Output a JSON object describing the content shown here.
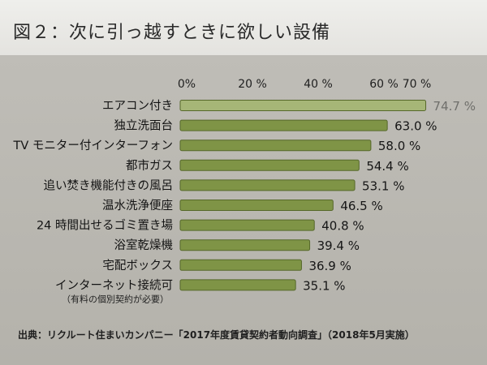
{
  "figure_title": "図２：次に引っ越すときに欲しい設備",
  "source_note": "出典：リクルート住まいカンパニー「2017年度賃貸契約者動向調査」（2018年5月実施）",
  "colors": {
    "bar_fill": "#7f9446",
    "bar_edge": "#56682a",
    "top_bar_fill": "#a6b677",
    "panel_bg": "#b9b7b1"
  },
  "chart_data": {
    "type": "bar",
    "orientation": "horizontal",
    "title": "",
    "xlabel": "",
    "ylabel": "",
    "xlim": [
      0,
      80
    ],
    "grid": false,
    "tick_values": [
      0,
      20,
      40,
      60,
      70
    ],
    "tick_labels": [
      "0%",
      "20 %",
      "40 %",
      "60 %",
      "70 %"
    ],
    "categories": [
      "エアコン付き",
      "独立洗面台",
      "TV モニター付インターフォン",
      "都市ガス",
      "追い焚き機能付きの風呂",
      "温水洗浄便座",
      "24 時間出せるゴミ置き場",
      "浴室乾燥機",
      "宅配ボックス",
      "インターネット接続可"
    ],
    "category_notes": [
      "",
      "",
      "",
      "",
      "",
      "",
      "",
      "",
      "",
      "（有料の個別契約が必要）"
    ],
    "values": [
      74.7,
      63.0,
      58.0,
      54.4,
      53.1,
      46.5,
      40.8,
      39.4,
      36.9,
      35.1
    ],
    "value_labels": [
      "74.7 %",
      "63.0 %",
      "58.0 %",
      "54.4 %",
      "53.1 %",
      "46.5 %",
      "40.8 %",
      "39.4 %",
      "36.9 %",
      "35.1 %"
    ]
  }
}
